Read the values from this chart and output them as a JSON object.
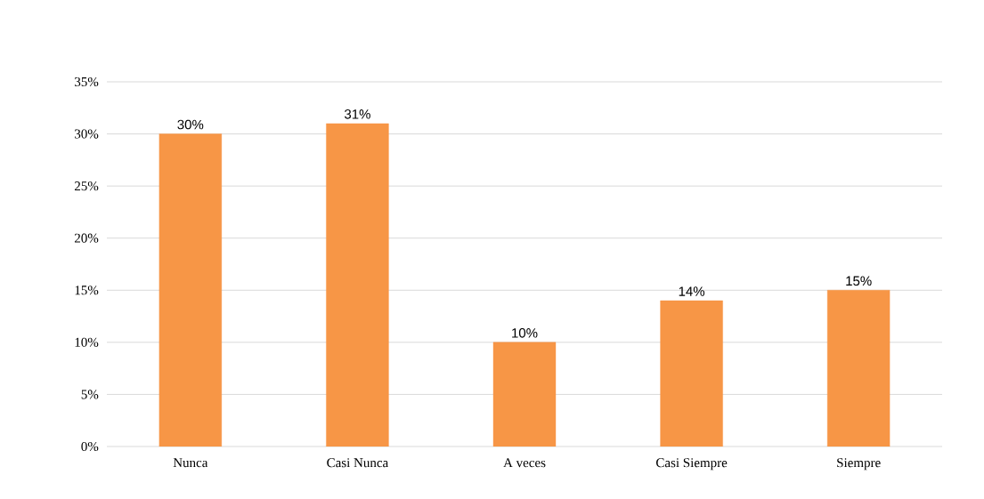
{
  "chart_data": {
    "type": "bar",
    "categories": [
      "Nunca",
      "Casi Nunca",
      "A veces",
      "Casi Siempre",
      "Siempre"
    ],
    "values": [
      30,
      31,
      10,
      14,
      15
    ],
    "value_labels": [
      "30%",
      "31%",
      "10%",
      "14%",
      "15%"
    ],
    "color": "#f79646",
    "ylim": [
      0,
      35
    ],
    "yticks": [
      {
        "value": 0,
        "label": "0%"
      },
      {
        "value": 5,
        "label": "5%"
      },
      {
        "value": 10,
        "label": "10%"
      },
      {
        "value": 15,
        "label": "15%"
      },
      {
        "value": 20,
        "label": "20%"
      },
      {
        "value": 25,
        "label": "25%"
      },
      {
        "value": 30,
        "label": "30%"
      },
      {
        "value": 35,
        "label": "35%"
      }
    ],
    "grid": "y"
  }
}
